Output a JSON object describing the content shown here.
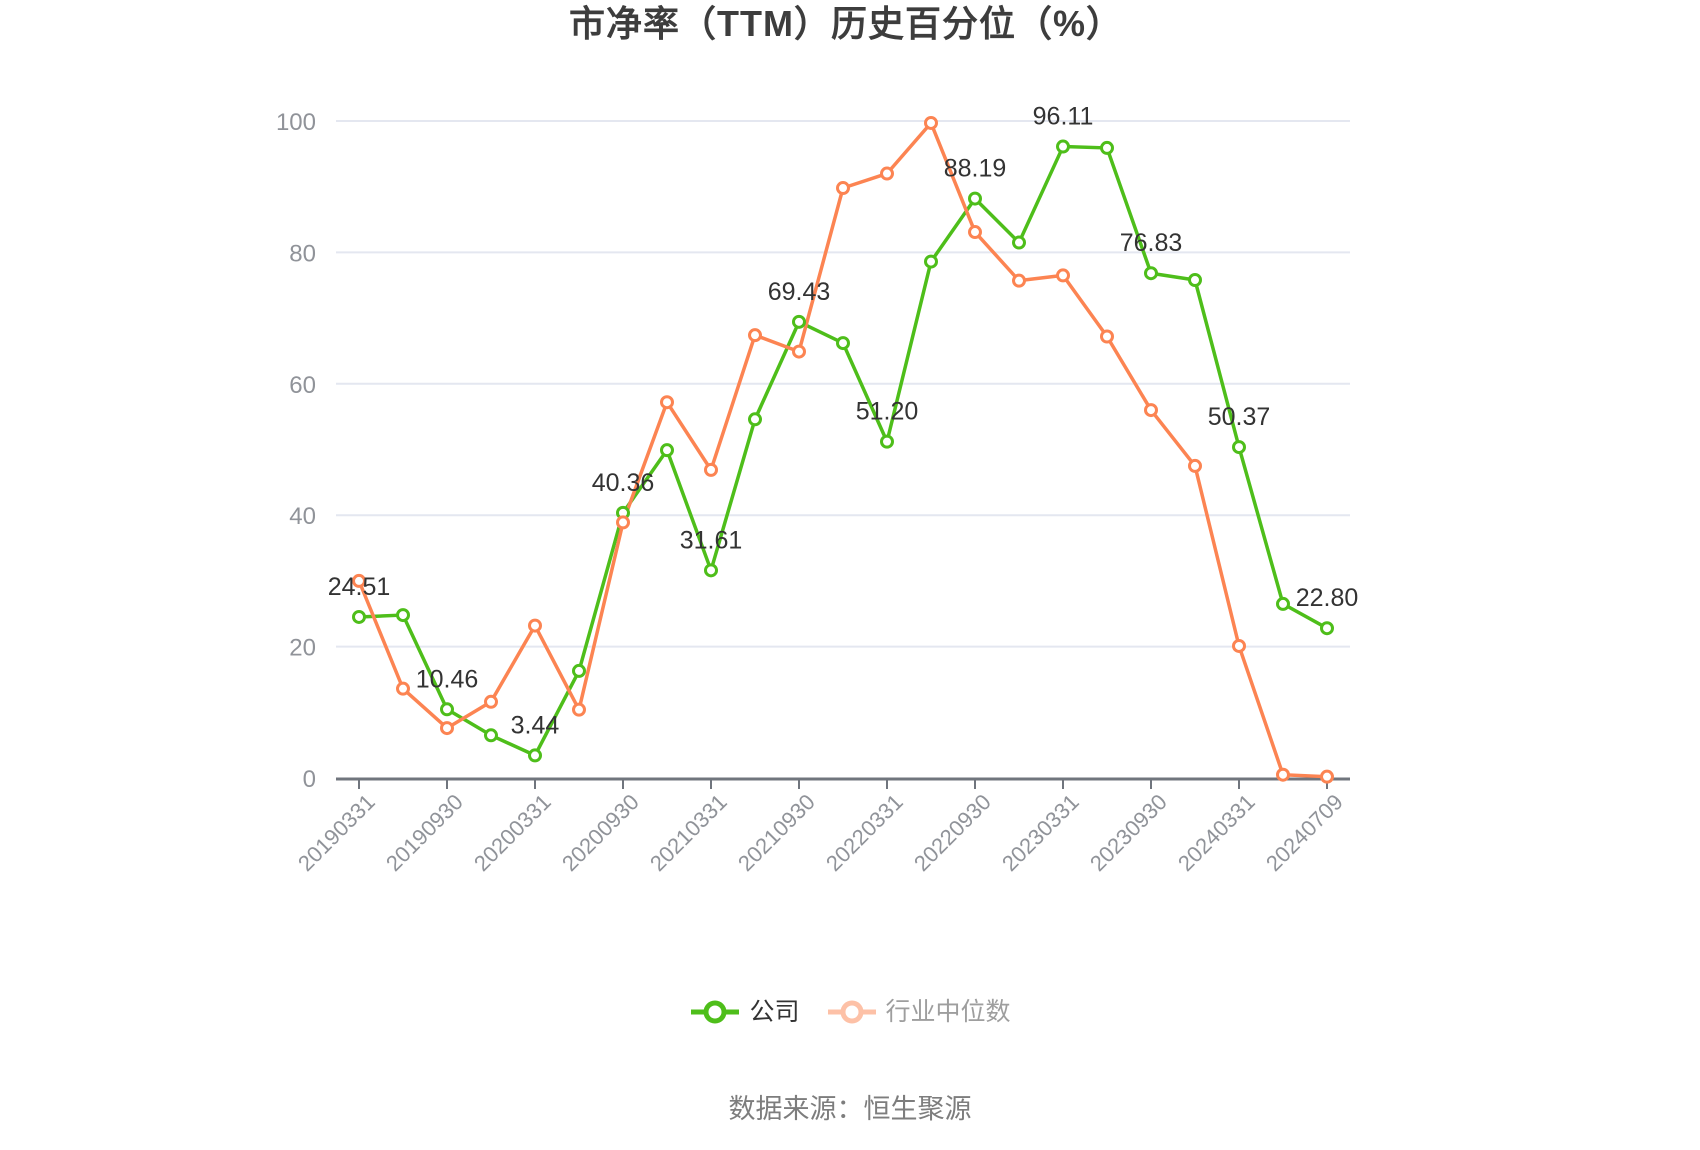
{
  "title": "市净率（TTM）历史百分位（%）",
  "source": "数据来源：恒生聚源",
  "legend": [
    {
      "label": "公司",
      "color": "#4EBE1A",
      "marker_opacity": 1,
      "label_color": "#333333"
    },
    {
      "label": "行业中位数",
      "color": "#FC8452",
      "marker_opacity": 0.5,
      "label_color": "#9E9E9E"
    }
  ],
  "colors": {
    "background": "#FFFFFF",
    "title": "#3D3D3D",
    "grid_line": "#E4E7F0",
    "axis_line": "#70757D",
    "axis_label": "#909399",
    "data_label": "#333333",
    "source": "#7D7D7D"
  },
  "chart_data": {
    "type": "line",
    "title": "市净率（TTM）历史百分位（%）",
    "ylim": [
      0,
      100
    ],
    "y_ticks": [
      0,
      20,
      40,
      60,
      80,
      100
    ],
    "grid": true,
    "legend_position": "bottom",
    "x_tick_labels": [
      "20190331",
      "20190930",
      "20200331",
      "20200930",
      "20210331",
      "20210930",
      "20220331",
      "20220930",
      "20230331",
      "20230930",
      "20240331",
      "20240709"
    ],
    "categories": [
      "20190331",
      null,
      "20190930",
      null,
      "20200331",
      null,
      "20200930",
      null,
      "20210331",
      null,
      "20210930",
      null,
      "20220331",
      null,
      "20220930",
      null,
      "20230331",
      null,
      "20230930",
      null,
      "20240331",
      null,
      "20240709"
    ],
    "series": [
      {
        "name": "公司",
        "color": "#4EBE1A",
        "values": [
          24.51,
          24.8,
          10.46,
          6.5,
          3.44,
          16.3,
          40.36,
          49.9,
          31.61,
          54.6,
          69.43,
          66.2,
          51.2,
          78.6,
          88.19,
          81.5,
          96.11,
          95.9,
          76.83,
          75.8,
          50.37,
          26.5,
          22.8
        ],
        "point_labels": [
          "24.51",
          null,
          "10.46",
          null,
          "3.44",
          null,
          "40.36",
          null,
          "31.61",
          null,
          "69.43",
          null,
          "51.20",
          null,
          "88.19",
          null,
          "96.11",
          null,
          "76.83",
          null,
          "50.37",
          null,
          "22.80"
        ]
      },
      {
        "name": "行业中位数",
        "color": "#FC8452",
        "values": [
          30.0,
          13.6,
          7.6,
          11.6,
          23.2,
          10.4,
          38.9,
          57.2,
          46.9,
          67.4,
          64.9,
          89.8,
          92.0,
          99.7,
          83.1,
          75.7,
          76.5,
          67.2,
          56.0,
          47.5,
          20.1,
          0.5,
          0.2
        ],
        "point_labels": []
      }
    ]
  }
}
